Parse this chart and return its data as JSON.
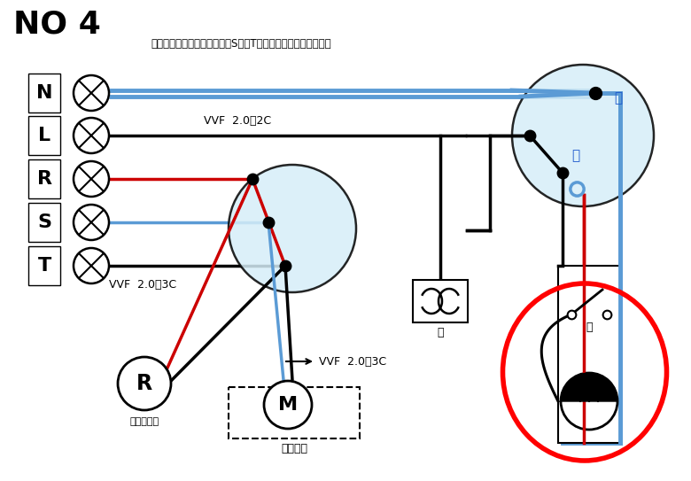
{
  "title": "NO 4",
  "subtitle": "施工条件として電源表示灯をS相とT相に接続を想定しています",
  "vvf_2c": "VVF  2.0－2C",
  "vvf_3c_1": "VVF  2.0－3C",
  "vvf_3c_2": "VVF  2.0－3C",
  "label_R_circle": "R",
  "label_elec": "電源表示灯",
  "label_M": "M",
  "label_seko": "施工省略",
  "label_sho1": "少",
  "label_sho2": "少",
  "label_i1": "イ",
  "label_i2": "イ",
  "labels_left": [
    "N",
    "L",
    "R",
    "S",
    "T"
  ],
  "bg_color": "#ffffff",
  "black": "#000000",
  "red": "#cc0000",
  "blue": "#5b9bd5",
  "light_blue": "#d6eef8",
  "red_highlight": "#ff0000",
  "blue_dark": "#1a56cc",
  "lw_main": 2.5,
  "lw_thick": 3.5
}
